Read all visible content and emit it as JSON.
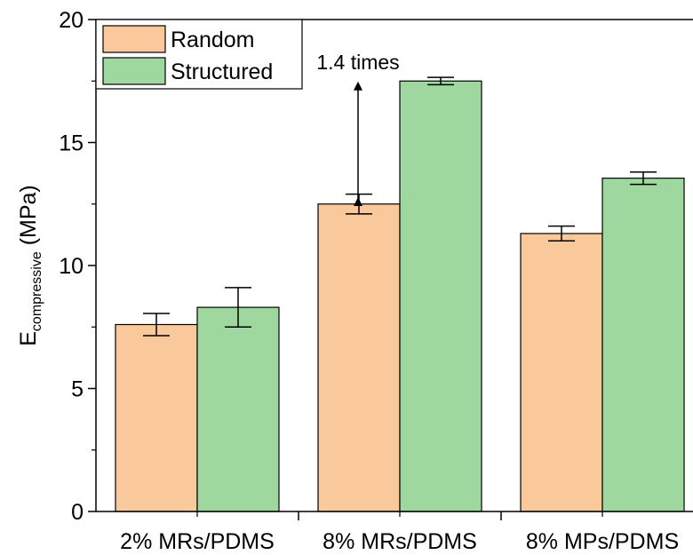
{
  "chart_data": {
    "type": "bar",
    "title": "",
    "xlabel": "",
    "ylabel": {
      "main": "E",
      "subscript": "compressive",
      "unit": " (MPa)"
    },
    "ylim": [
      0,
      20
    ],
    "yticks": [
      "0",
      "5",
      "10",
      "15",
      "20"
    ],
    "grid": false,
    "legend_position": "top-left",
    "categories": [
      "2% MRs/PDMS",
      "8% MRs/PDMS",
      "8% MPs/PDMS"
    ],
    "series": [
      {
        "name": "Random",
        "color": "#f9c89b",
        "values": [
          7.6,
          12.5,
          11.3
        ],
        "errors": [
          0.45,
          0.4,
          0.3
        ]
      },
      {
        "name": "Structured",
        "color": "#9ed89e",
        "values": [
          8.3,
          17.5,
          13.55
        ],
        "errors": [
          0.8,
          0.15,
          0.25
        ]
      }
    ],
    "annotation": {
      "text": "1.4 times",
      "category_index": 1,
      "from": 12.5,
      "to": 17.5
    }
  }
}
